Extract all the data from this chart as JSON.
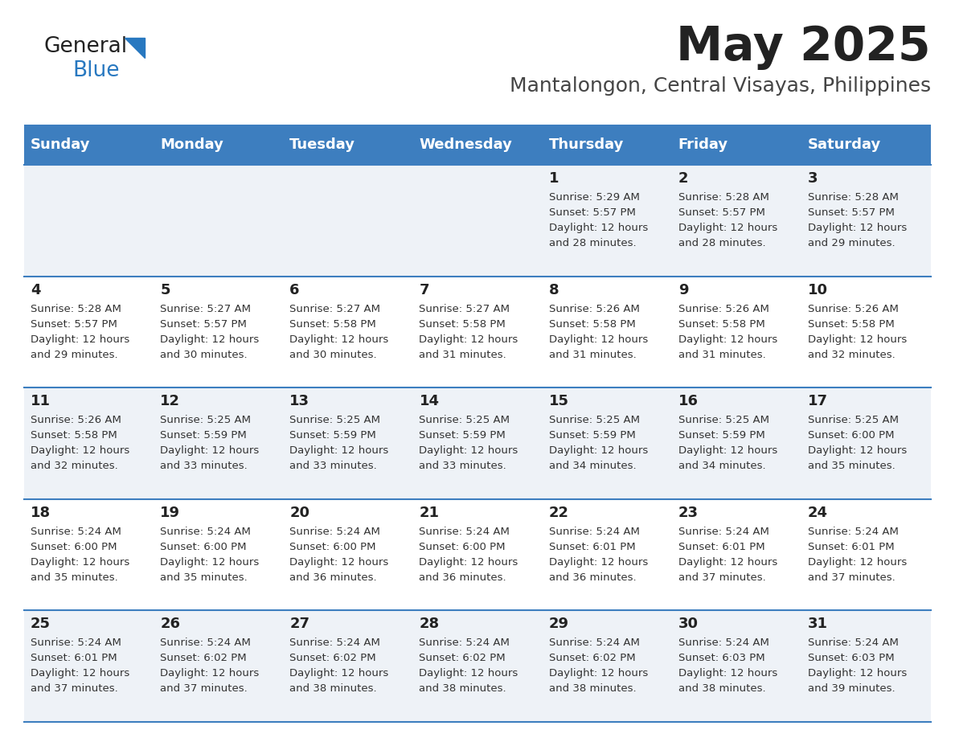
{
  "title": "May 2025",
  "subtitle": "Mantalongon, Central Visayas, Philippines",
  "days_of_week": [
    "Sunday",
    "Monday",
    "Tuesday",
    "Wednesday",
    "Thursday",
    "Friday",
    "Saturday"
  ],
  "header_bg": "#3d7ebf",
  "header_text": "#ffffff",
  "row_bg_odd": "#eef2f7",
  "row_bg_even": "#ffffff",
  "cell_border": "#3d7ebf",
  "day_num_color": "#222222",
  "text_color": "#333333",
  "title_color": "#222222",
  "subtitle_color": "#444444",
  "logo_general_color": "#222222",
  "logo_blue_color": "#2878c0",
  "calendar_data": [
    [
      {
        "day": "",
        "sunrise": "",
        "sunset": "",
        "daylight": ""
      },
      {
        "day": "",
        "sunrise": "",
        "sunset": "",
        "daylight": ""
      },
      {
        "day": "",
        "sunrise": "",
        "sunset": "",
        "daylight": ""
      },
      {
        "day": "",
        "sunrise": "",
        "sunset": "",
        "daylight": ""
      },
      {
        "day": "1",
        "sunrise": "5:29 AM",
        "sunset": "5:57 PM",
        "daylight": "12 hours and 28 minutes."
      },
      {
        "day": "2",
        "sunrise": "5:28 AM",
        "sunset": "5:57 PM",
        "daylight": "12 hours and 28 minutes."
      },
      {
        "day": "3",
        "sunrise": "5:28 AM",
        "sunset": "5:57 PM",
        "daylight": "12 hours and 29 minutes."
      }
    ],
    [
      {
        "day": "4",
        "sunrise": "5:28 AM",
        "sunset": "5:57 PM",
        "daylight": "12 hours and 29 minutes."
      },
      {
        "day": "5",
        "sunrise": "5:27 AM",
        "sunset": "5:57 PM",
        "daylight": "12 hours and 30 minutes."
      },
      {
        "day": "6",
        "sunrise": "5:27 AM",
        "sunset": "5:58 PM",
        "daylight": "12 hours and 30 minutes."
      },
      {
        "day": "7",
        "sunrise": "5:27 AM",
        "sunset": "5:58 PM",
        "daylight": "12 hours and 31 minutes."
      },
      {
        "day": "8",
        "sunrise": "5:26 AM",
        "sunset": "5:58 PM",
        "daylight": "12 hours and 31 minutes."
      },
      {
        "day": "9",
        "sunrise": "5:26 AM",
        "sunset": "5:58 PM",
        "daylight": "12 hours and 31 minutes."
      },
      {
        "day": "10",
        "sunrise": "5:26 AM",
        "sunset": "5:58 PM",
        "daylight": "12 hours and 32 minutes."
      }
    ],
    [
      {
        "day": "11",
        "sunrise": "5:26 AM",
        "sunset": "5:58 PM",
        "daylight": "12 hours and 32 minutes."
      },
      {
        "day": "12",
        "sunrise": "5:25 AM",
        "sunset": "5:59 PM",
        "daylight": "12 hours and 33 minutes."
      },
      {
        "day": "13",
        "sunrise": "5:25 AM",
        "sunset": "5:59 PM",
        "daylight": "12 hours and 33 minutes."
      },
      {
        "day": "14",
        "sunrise": "5:25 AM",
        "sunset": "5:59 PM",
        "daylight": "12 hours and 33 minutes."
      },
      {
        "day": "15",
        "sunrise": "5:25 AM",
        "sunset": "5:59 PM",
        "daylight": "12 hours and 34 minutes."
      },
      {
        "day": "16",
        "sunrise": "5:25 AM",
        "sunset": "5:59 PM",
        "daylight": "12 hours and 34 minutes."
      },
      {
        "day": "17",
        "sunrise": "5:25 AM",
        "sunset": "6:00 PM",
        "daylight": "12 hours and 35 minutes."
      }
    ],
    [
      {
        "day": "18",
        "sunrise": "5:24 AM",
        "sunset": "6:00 PM",
        "daylight": "12 hours and 35 minutes."
      },
      {
        "day": "19",
        "sunrise": "5:24 AM",
        "sunset": "6:00 PM",
        "daylight": "12 hours and 35 minutes."
      },
      {
        "day": "20",
        "sunrise": "5:24 AM",
        "sunset": "6:00 PM",
        "daylight": "12 hours and 36 minutes."
      },
      {
        "day": "21",
        "sunrise": "5:24 AM",
        "sunset": "6:00 PM",
        "daylight": "12 hours and 36 minutes."
      },
      {
        "day": "22",
        "sunrise": "5:24 AM",
        "sunset": "6:01 PM",
        "daylight": "12 hours and 36 minutes."
      },
      {
        "day": "23",
        "sunrise": "5:24 AM",
        "sunset": "6:01 PM",
        "daylight": "12 hours and 37 minutes."
      },
      {
        "day": "24",
        "sunrise": "5:24 AM",
        "sunset": "6:01 PM",
        "daylight": "12 hours and 37 minutes."
      }
    ],
    [
      {
        "day": "25",
        "sunrise": "5:24 AM",
        "sunset": "6:01 PM",
        "daylight": "12 hours and 37 minutes."
      },
      {
        "day": "26",
        "sunrise": "5:24 AM",
        "sunset": "6:02 PM",
        "daylight": "12 hours and 37 minutes."
      },
      {
        "day": "27",
        "sunrise": "5:24 AM",
        "sunset": "6:02 PM",
        "daylight": "12 hours and 38 minutes."
      },
      {
        "day": "28",
        "sunrise": "5:24 AM",
        "sunset": "6:02 PM",
        "daylight": "12 hours and 38 minutes."
      },
      {
        "day": "29",
        "sunrise": "5:24 AM",
        "sunset": "6:02 PM",
        "daylight": "12 hours and 38 minutes."
      },
      {
        "day": "30",
        "sunrise": "5:24 AM",
        "sunset": "6:03 PM",
        "daylight": "12 hours and 38 minutes."
      },
      {
        "day": "31",
        "sunrise": "5:24 AM",
        "sunset": "6:03 PM",
        "daylight": "12 hours and 39 minutes."
      }
    ]
  ]
}
